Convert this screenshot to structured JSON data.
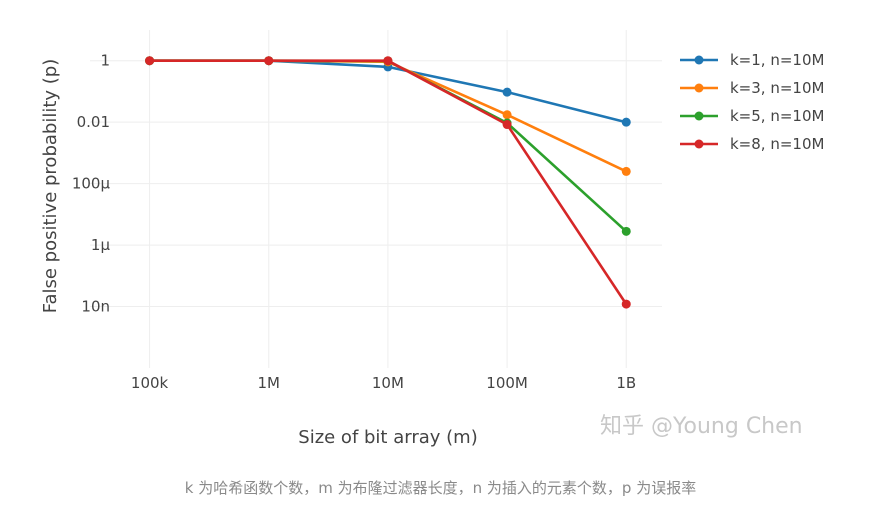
{
  "chart_data": {
    "type": "line",
    "xlabel": "Size of bit array (m)",
    "ylabel": "False positive probability (p)",
    "x_scale": "log",
    "y_scale": "log",
    "x": [
      100000,
      1000000,
      10000000,
      100000000,
      1000000000
    ],
    "x_tick_labels": [
      "100k",
      "1M",
      "10M",
      "100M",
      "1B"
    ],
    "y_tick_values": [
      1,
      0.01,
      0.0001,
      1e-06,
      1e-08
    ],
    "y_tick_labels": [
      "1",
      "0.01",
      "100μ",
      "1μ",
      "10n"
    ],
    "ylim": [
      1e-10,
      10
    ],
    "grid": true,
    "legend_position": "right",
    "series": [
      {
        "name": "k=1, n=10M",
        "color": "#1f77b4",
        "values": [
          1.0,
          1.0,
          0.63,
          0.095,
          0.01
        ]
      },
      {
        "name": "k=3, n=10M",
        "color": "#ff7f0e",
        "values": [
          1.0,
          1.0,
          0.92,
          0.0174,
          0.00025
        ]
      },
      {
        "name": "k=5, n=10M",
        "color": "#2ca02c",
        "values": [
          1.0,
          1.0,
          0.99,
          0.0094,
          2.8e-06
        ]
      },
      {
        "name": "k=8, n=10M",
        "color": "#d62728",
        "values": [
          1.0,
          1.0,
          1.0,
          0.0084,
          1.2e-08
        ]
      }
    ]
  },
  "watermark": "知乎 @Young Chen",
  "caption": "k 为哈希函数个数，m 为布隆过滤器长度，n 为插入的元素个数，p 为误报率"
}
